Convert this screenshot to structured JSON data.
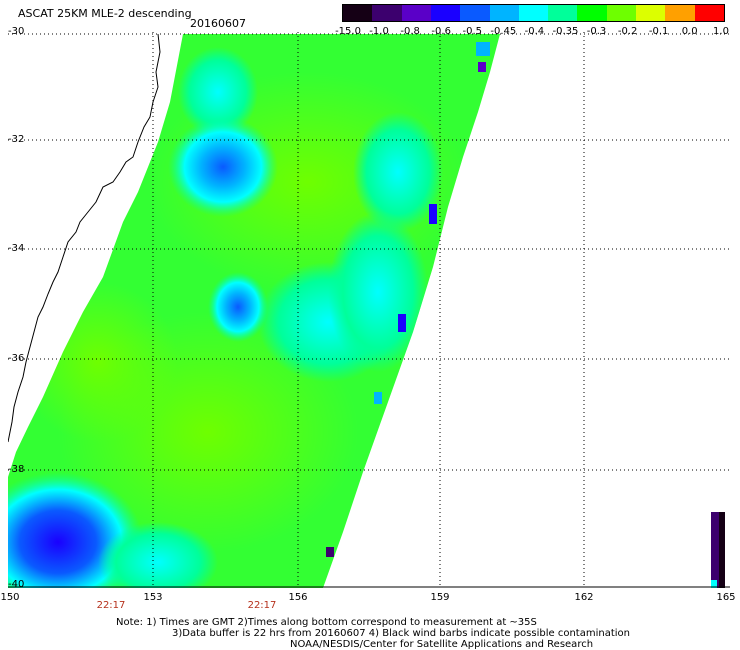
{
  "header": {
    "title": "ASCAT 25KM MLE-2 descending",
    "date": "20160607"
  },
  "colorbar": {
    "labels": [
      "-15.0",
      "-1.0",
      "-0.8",
      "-0.6",
      "-0.5",
      "-0.45",
      "-0.4",
      "-0.35",
      "-0.3",
      "-0.2",
      "-0.1",
      "0.0",
      "1.0"
    ],
    "colors": [
      "#150015",
      "#3c006e",
      "#5a00c8",
      "#1a00ff",
      "#0a5aff",
      "#00b4ff",
      "#00ffff",
      "#00ff9a",
      "#00ff00",
      "#6eff00",
      "#dcff00",
      "#ffa000",
      "#ff0000"
    ]
  },
  "map": {
    "lat_labels": [
      "-30",
      "-32",
      "-34",
      "-36",
      "-38",
      "-40"
    ],
    "lon_labels": [
      "150",
      "153",
      "156",
      "159",
      "162",
      "165"
    ],
    "time_labels": [
      "22:17",
      "22:17"
    ]
  },
  "notes": {
    "line1": "Note: 1) Times are GMT 2)Times along bottom correspond to measurement at ~35S",
    "line2": "3)Data buffer is 22 hrs from 20160607 4) Black wind barbs indicate possible contamination",
    "line3": "NOAA/NESDIS/Center for Satellite Applications and Research"
  }
}
